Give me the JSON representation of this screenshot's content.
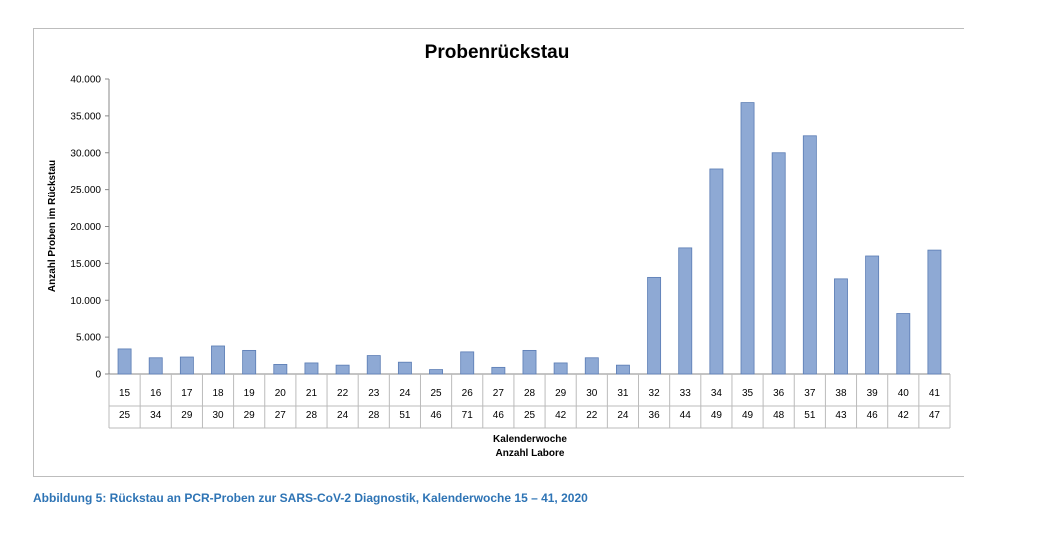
{
  "chart_data": {
    "type": "bar",
    "title": "Probenrückstau",
    "ylabel": "Anzahl Proben im Rückstau",
    "xlabel_lines": [
      "Kalenderwoche",
      "Anzahl Labore"
    ],
    "ylim": [
      0,
      40000
    ],
    "yticks": [
      "0",
      "5.000",
      "10.000",
      "15.000",
      "20.000",
      "25.000",
      "30.000",
      "35.000",
      "40.000"
    ],
    "grid": false,
    "bar_color": "#8ea9d4",
    "bar_stroke": "#5a7cb4",
    "categories": [
      "15",
      "16",
      "17",
      "18",
      "19",
      "20",
      "21",
      "22",
      "23",
      "24",
      "25",
      "26",
      "27",
      "28",
      "29",
      "30",
      "31",
      "32",
      "33",
      "34",
      "35",
      "36",
      "37",
      "38",
      "39",
      "40",
      "41"
    ],
    "labs": [
      "25",
      "34",
      "29",
      "30",
      "29",
      "27",
      "28",
      "24",
      "28",
      "51",
      "46",
      "71",
      "46",
      "25",
      "42",
      "22",
      "24",
      "36",
      "44",
      "49",
      "49",
      "48",
      "51",
      "43",
      "46",
      "42",
      "47"
    ],
    "values": [
      3400,
      2200,
      2300,
      3800,
      3200,
      1300,
      1500,
      1200,
      2500,
      1600,
      600,
      3000,
      900,
      3200,
      1500,
      2200,
      1200,
      13100,
      17100,
      27800,
      36800,
      30000,
      32300,
      12900,
      16000,
      8200,
      16800
    ]
  },
  "caption": "Abbildung 5: Rückstau an PCR-Proben zur SARS-CoV-2 Diagnostik, Kalenderwoche 15 – 41, 2020"
}
